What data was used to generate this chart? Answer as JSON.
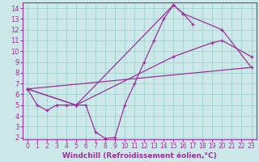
{
  "xlabel": "Windchill (Refroidissement éolien,°C)",
  "bg_color": "#cce8e8",
  "line_color": "#993399",
  "grid_color": "#99cccc",
  "xlim": [
    -0.5,
    23.5
  ],
  "ylim": [
    1.8,
    14.5
  ],
  "xticks": [
    0,
    1,
    2,
    3,
    4,
    5,
    6,
    7,
    8,
    9,
    10,
    11,
    12,
    13,
    14,
    15,
    16,
    17,
    18,
    19,
    20,
    21,
    22,
    23
  ],
  "yticks": [
    2,
    3,
    4,
    5,
    6,
    7,
    8,
    9,
    10,
    11,
    12,
    13,
    14
  ],
  "line1_x": [
    0,
    1,
    2,
    3,
    4,
    5,
    6,
    7,
    8,
    9,
    10,
    11,
    12,
    13,
    14,
    15,
    16,
    17
  ],
  "line1_y": [
    6.5,
    5.0,
    4.5,
    5.0,
    5.0,
    5.0,
    5.0,
    2.5,
    1.9,
    2.0,
    5.0,
    7.0,
    9.0,
    11.0,
    13.0,
    14.3,
    13.5,
    12.5
  ],
  "line2_x": [
    0,
    23
  ],
  "line2_y": [
    6.5,
    8.5
  ],
  "line3_x": [
    0,
    5,
    15,
    19,
    20,
    23
  ],
  "line3_y": [
    6.5,
    5.0,
    9.5,
    10.8,
    11.0,
    9.5
  ],
  "line4_x": [
    0,
    5,
    15,
    16,
    20,
    23
  ],
  "line4_y": [
    6.5,
    5.0,
    14.3,
    13.5,
    12.0,
    8.5
  ],
  "font_size": 6.5,
  "tick_font_size": 5.5
}
